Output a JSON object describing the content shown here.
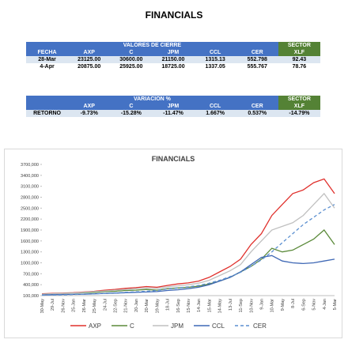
{
  "header": {
    "title": "FINANCIALS"
  },
  "table1": {
    "group_header": "VALORES DE CIERRE",
    "sector_header": "SECTOR",
    "columns": [
      "FECHA",
      "AXP",
      "C",
      "JPM",
      "CCL",
      "CER",
      "XLF"
    ],
    "rows": [
      [
        "28-Mar",
        "23125.00",
        "30600.00",
        "21150.00",
        "1315.13",
        "552.798",
        "92.43"
      ],
      [
        "4-Apr",
        "20875.00",
        "25925.00",
        "18725.00",
        "1337.05",
        "555.767",
        "78.76"
      ]
    ]
  },
  "table2": {
    "group_header": "VARIACION %",
    "sector_header": "SECTOR",
    "columns": [
      "AXP",
      "C",
      "JPM",
      "CCL",
      "CER",
      "XLF"
    ],
    "rows": [
      [
        "RETORNO",
        "-9.73%",
        "-15.28%",
        "-11.47%",
        "1.667%",
        "0.537%",
        "-14.79%"
      ]
    ]
  },
  "chart_data": {
    "type": "line",
    "title": "FINANCIALS",
    "categories": [
      "30-May",
      "29-Jul",
      "26-Nov",
      "25-Jan",
      "26-Mar",
      "25-May",
      "24-Jul",
      "22-Sep",
      "21-Nov",
      "20-Jan",
      "20-Mar",
      "19-May",
      "18-Jul",
      "16-Sep",
      "15-Nov",
      "14-Jan",
      "15-Mar",
      "14-May",
      "13-Jul",
      "11-Sep",
      "10-Nov",
      "9-Jan",
      "10-Mar",
      "9-May",
      "8-Jul",
      "6-Sep",
      "5-Nov",
      "4-Jan",
      "5-Mar"
    ],
    "series": [
      {
        "name": "AXP",
        "color": "#e0302c",
        "dashed": false,
        "values": [
          150000,
          160000,
          170000,
          180000,
          200000,
          220000,
          250000,
          270000,
          300000,
          320000,
          350000,
          330000,
          380000,
          420000,
          450000,
          500000,
          600000,
          750000,
          900000,
          1100000,
          1500000,
          1800000,
          2300000,
          2600000,
          2900000,
          3000000,
          3200000,
          3300000,
          2900000
        ]
      },
      {
        "name": "C",
        "color": "#5b8a3a",
        "dashed": false,
        "values": [
          140000,
          150000,
          160000,
          170000,
          180000,
          190000,
          210000,
          220000,
          240000,
          250000,
          270000,
          250000,
          290000,
          310000,
          330000,
          360000,
          420000,
          500000,
          600000,
          750000,
          900000,
          1100000,
          1400000,
          1300000,
          1350000,
          1500000,
          1650000,
          1900000,
          1500000
        ]
      },
      {
        "name": "JPM",
        "color": "#c0c0c0",
        "dashed": false,
        "values": [
          140000,
          150000,
          160000,
          170000,
          190000,
          210000,
          230000,
          250000,
          270000,
          290000,
          310000,
          300000,
          340000,
          370000,
          400000,
          440000,
          520000,
          650000,
          780000,
          950000,
          1300000,
          1600000,
          1900000,
          2000000,
          2100000,
          2300000,
          2600000,
          2900000,
          2500000
        ]
      },
      {
        "name": "CCL",
        "color": "#3f68b5",
        "dashed": false,
        "values": [
          120000,
          125000,
          130000,
          135000,
          140000,
          150000,
          160000,
          170000,
          180000,
          190000,
          200000,
          210000,
          240000,
          260000,
          290000,
          330000,
          400000,
          500000,
          600000,
          750000,
          950000,
          1150000,
          1200000,
          1050000,
          1000000,
          980000,
          1000000,
          1050000,
          1100000
        ]
      },
      {
        "name": "CER",
        "color": "#5b8fd0",
        "dashed": true,
        "values": [
          110000,
          115000,
          120000,
          130000,
          140000,
          150000,
          160000,
          175000,
          190000,
          205000,
          220000,
          240000,
          285000,
          310000,
          340000,
          380000,
          440000,
          520000,
          620000,
          740000,
          900000,
          1080000,
          1300000,
          1550000,
          1800000,
          2050000,
          2250000,
          2450000,
          2600000
        ]
      }
    ],
    "ylim": [
      100000,
      3700000
    ],
    "yticks": [
      {
        "value": 100000,
        "label": "100,000"
      },
      {
        "value": 400000,
        "label": "400,000"
      },
      {
        "value": 700000,
        "label": "700,000"
      },
      {
        "value": 1000000,
        "label": "1000,000"
      },
      {
        "value": 1300000,
        "label": "1300,000"
      },
      {
        "value": 1600000,
        "label": "1600,000"
      },
      {
        "value": 1900000,
        "label": "1900,000"
      },
      {
        "value": 2200000,
        "label": "2200,000"
      },
      {
        "value": 2500000,
        "label": "2500,000"
      },
      {
        "value": 2800000,
        "label": "2800,000"
      },
      {
        "value": 3100000,
        "label": "3100,000"
      },
      {
        "value": 3400000,
        "label": "3400,000"
      },
      {
        "value": 3700000,
        "label": "3700,000"
      }
    ],
    "grid": false
  }
}
